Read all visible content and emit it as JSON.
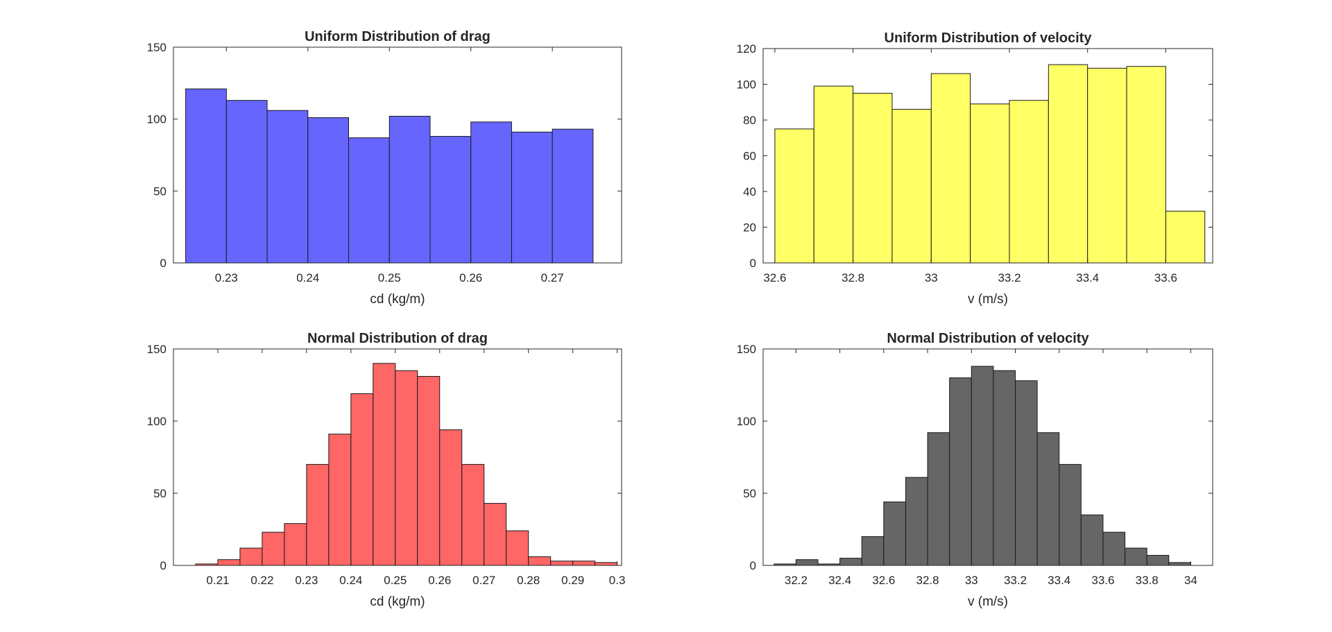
{
  "chart_data": [
    {
      "type": "bar",
      "title": "Uniform Distribution of drag",
      "xlabel": "cd (kg/m)",
      "ylabel": "",
      "xlim": [
        0.2235,
        0.2785
      ],
      "ylim": [
        0,
        150
      ],
      "xticks": [
        0.23,
        0.24,
        0.25,
        0.26,
        0.27
      ],
      "xtick_labels": [
        "0.23",
        "0.24",
        "0.25",
        "0.26",
        "0.27"
      ],
      "yticks": [
        0,
        50,
        100,
        150
      ],
      "ytick_labels": [
        "0",
        "50",
        "100",
        "150"
      ],
      "bin_edges": [
        0.225,
        0.23,
        0.235,
        0.24,
        0.245,
        0.25,
        0.255,
        0.26,
        0.265,
        0.27,
        0.275
      ],
      "values": [
        121,
        113,
        106,
        101,
        87,
        102,
        88,
        98,
        91,
        93
      ],
      "color": "#6666ff"
    },
    {
      "type": "bar",
      "title": "Uniform Distribution of velocity",
      "xlabel": "v (m/s)",
      "ylabel": "",
      "xlim": [
        32.57,
        33.72
      ],
      "ylim": [
        0,
        120
      ],
      "xticks": [
        32.6,
        32.8,
        33,
        33.2,
        33.4,
        33.6
      ],
      "xtick_labels": [
        "32.6",
        "32.8",
        "33",
        "33.2",
        "33.4",
        "33.6"
      ],
      "yticks": [
        0,
        20,
        40,
        60,
        80,
        100,
        120
      ],
      "ytick_labels": [
        "0",
        "20",
        "40",
        "60",
        "80",
        "100",
        "120"
      ],
      "bin_edges": [
        32.6,
        32.7,
        32.8,
        32.9,
        33.0,
        33.1,
        33.2,
        33.3,
        33.4,
        33.5,
        33.6,
        33.7
      ],
      "values": [
        75,
        99,
        95,
        86,
        106,
        89,
        91,
        111,
        109,
        110,
        29
      ],
      "color": "#ffff66"
    },
    {
      "type": "bar",
      "title": "Normal Distribution of drag",
      "xlabel": "cd (kg/m)",
      "ylabel": "",
      "xlim": [
        0.2,
        0.301
      ],
      "ylim": [
        0,
        150
      ],
      "xticks": [
        0.21,
        0.22,
        0.23,
        0.24,
        0.25,
        0.26,
        0.27,
        0.28,
        0.29,
        0.3
      ],
      "xtick_labels": [
        "0.21",
        "0.22",
        "0.23",
        "0.24",
        "0.25",
        "0.26",
        "0.27",
        "0.28",
        "0.29",
        "0.3"
      ],
      "yticks": [
        0,
        50,
        100,
        150
      ],
      "ytick_labels": [
        "0",
        "50",
        "100",
        "150"
      ],
      "bin_edges": [
        0.205,
        0.21,
        0.215,
        0.22,
        0.225,
        0.23,
        0.235,
        0.24,
        0.245,
        0.25,
        0.255,
        0.26,
        0.265,
        0.27,
        0.275,
        0.28,
        0.285,
        0.29,
        0.295,
        0.3
      ],
      "values": [
        1,
        4,
        12,
        23,
        29,
        70,
        91,
        119,
        140,
        135,
        131,
        94,
        70,
        43,
        24,
        6,
        3,
        3,
        2
      ],
      "color": "#ff6666"
    },
    {
      "type": "bar",
      "title": "Normal Distribution of velocity",
      "xlabel": "v (m/s)",
      "ylabel": "",
      "xlim": [
        32.05,
        34.1
      ],
      "ylim": [
        0,
        150
      ],
      "xticks": [
        32.2,
        32.4,
        32.6,
        32.8,
        33,
        33.2,
        33.4,
        33.6,
        33.8,
        34
      ],
      "xtick_labels": [
        "32.2",
        "32.4",
        "32.6",
        "32.8",
        "33",
        "33.2",
        "33.4",
        "33.6",
        "33.8",
        "34"
      ],
      "yticks": [
        0,
        50,
        100,
        150
      ],
      "ytick_labels": [
        "0",
        "50",
        "100",
        "150"
      ],
      "bin_edges": [
        32.1,
        32.2,
        32.3,
        32.4,
        32.5,
        32.6,
        32.7,
        32.8,
        32.9,
        33.0,
        33.1,
        33.2,
        33.3,
        33.4,
        33.5,
        33.6,
        33.7,
        33.8,
        33.9,
        34.0
      ],
      "values": [
        1,
        4,
        1,
        5,
        20,
        44,
        61,
        92,
        130,
        138,
        135,
        128,
        92,
        70,
        35,
        23,
        12,
        7,
        2
      ],
      "color": "#666666"
    }
  ]
}
